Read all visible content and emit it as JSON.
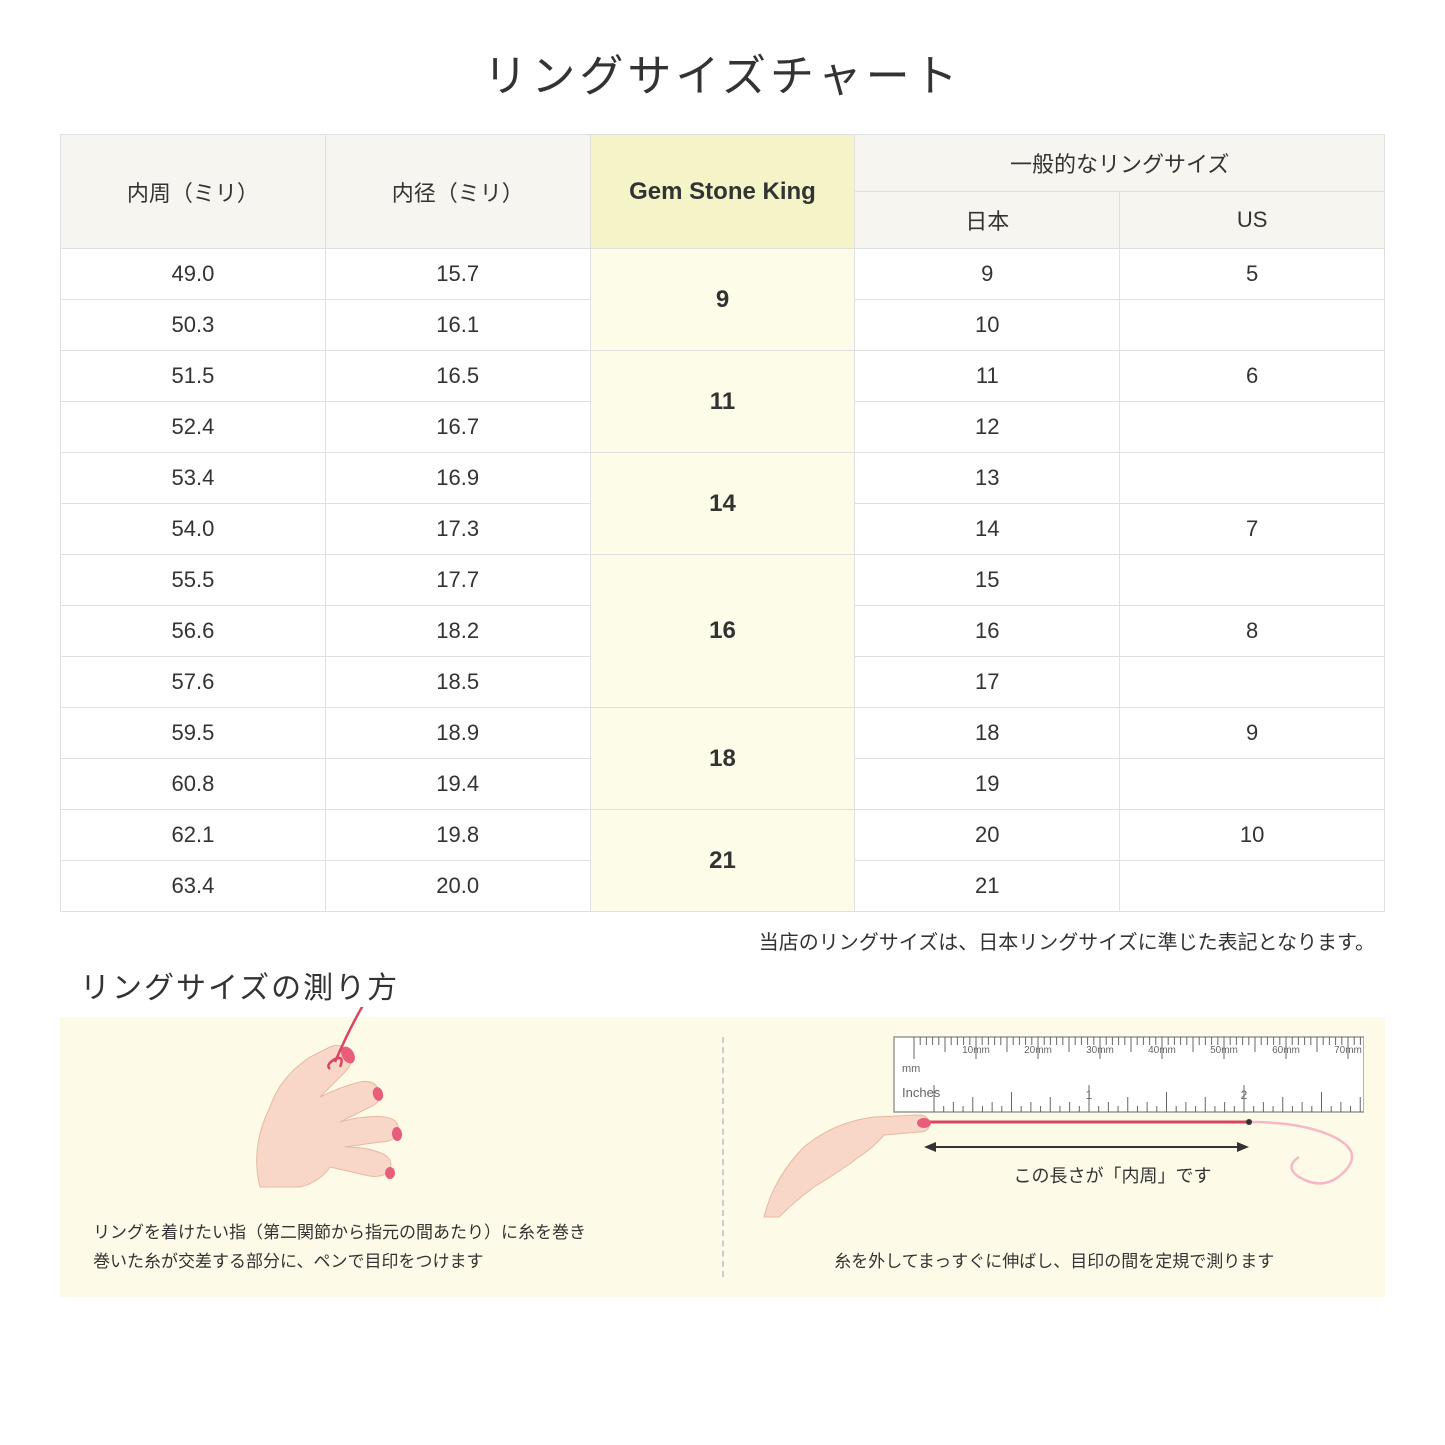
{
  "title": "リングサイズチャート",
  "headers": {
    "col1": "内周（ミリ）",
    "col2": "内径（ミリ）",
    "col3": "Gem Stone King",
    "col4_top": "一般的なリングサイズ",
    "col4_jp": "日本",
    "col4_us": "US"
  },
  "groups": [
    {
      "gsk": "9",
      "rows": [
        {
          "circ": "49.0",
          "diam": "15.7",
          "jp": "9",
          "us": "5"
        },
        {
          "circ": "50.3",
          "diam": "16.1",
          "jp": "10",
          "us": ""
        }
      ]
    },
    {
      "gsk": "11",
      "rows": [
        {
          "circ": "51.5",
          "diam": "16.5",
          "jp": "11",
          "us": "6"
        },
        {
          "circ": "52.4",
          "diam": "16.7",
          "jp": "12",
          "us": ""
        }
      ]
    },
    {
      "gsk": "14",
      "rows": [
        {
          "circ": "53.4",
          "diam": "16.9",
          "jp": "13",
          "us": ""
        },
        {
          "circ": "54.0",
          "diam": "17.3",
          "jp": "14",
          "us": "7"
        }
      ]
    },
    {
      "gsk": "16",
      "rows": [
        {
          "circ": "55.5",
          "diam": "17.7",
          "jp": "15",
          "us": ""
        },
        {
          "circ": "56.6",
          "diam": "18.2",
          "jp": "16",
          "us": "8"
        },
        {
          "circ": "57.6",
          "diam": "18.5",
          "jp": "17",
          "us": ""
        }
      ]
    },
    {
      "gsk": "18",
      "rows": [
        {
          "circ": "59.5",
          "diam": "18.9",
          "jp": "18",
          "us": "9"
        },
        {
          "circ": "60.8",
          "diam": "19.4",
          "jp": "19",
          "us": ""
        }
      ]
    },
    {
      "gsk": "21",
      "rows": [
        {
          "circ": "62.1",
          "diam": "19.8",
          "jp": "20",
          "us": "10"
        },
        {
          "circ": "63.4",
          "diam": "20.0",
          "jp": "21",
          "us": ""
        }
      ]
    }
  ],
  "note": "当店のリングサイズは、日本リングサイズに準じた表記となります。",
  "subtitle": "リングサイズの測り方",
  "howto_left": "リングを着けたい指（第二関節から指元の間あたり）に糸を巻き\n巻いた糸が交差する部分に、ペンで目印をつけます",
  "howto_right": "糸を外してまっすぐに伸ばし、目印の間を定規で測ります",
  "ruler_label": "この長さが「内周」です",
  "ruler_ticks": [
    "10mm",
    "20mm",
    "30mm",
    "40mm",
    "50mm",
    "60mm",
    "70mm"
  ],
  "ruler_inches": "Inches",
  "ruler_mm": "mm",
  "colors": {
    "header_bg": "#f7f5f0",
    "gsk_header_bg": "#f5f3c8",
    "gsk_cell_bg": "#fdfce8",
    "howto_bg": "#fdfbe8",
    "border": "#e0e0e0",
    "skin": "#f8d7c8",
    "nail": "#e85d7a",
    "thread": "#d94560"
  }
}
